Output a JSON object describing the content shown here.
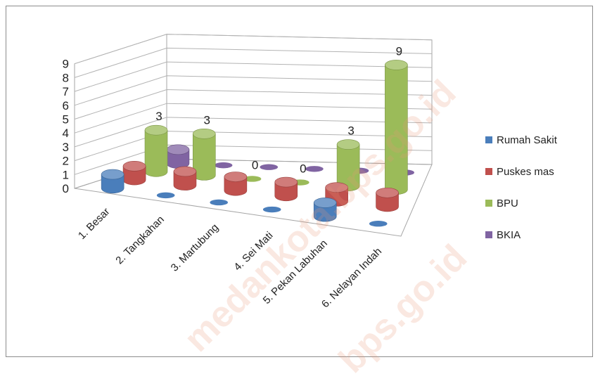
{
  "chart_data": {
    "type": "bar",
    "style": "3d-cylinder",
    "categories": [
      "1.    Besar",
      "2.    Tangkahan",
      "3.    Martubung",
      "4.    Sei Mati",
      "5.    Pekan Labuhan",
      "6.    Nelayan Indah"
    ],
    "series": [
      {
        "name": "Rumah Sakit",
        "color": "#4a7ebb",
        "values": [
          1,
          0,
          0,
          0,
          1,
          0
        ]
      },
      {
        "name": "Puskes mas",
        "color": "#c0504d",
        "values": [
          1,
          1,
          1,
          1,
          1,
          1
        ]
      },
      {
        "name": "BPU",
        "color": "#9bbb59",
        "values": [
          3,
          3,
          0,
          0,
          3,
          9
        ]
      },
      {
        "name": "BKIA",
        "color": "#8064a2",
        "values": [
          1,
          0,
          0,
          0,
          0,
          0
        ]
      }
    ],
    "data_labels": [
      {
        "series": "BPU",
        "category_index": 0,
        "text": "3"
      },
      {
        "series": "BPU",
        "category_index": 1,
        "text": "3"
      },
      {
        "series": "BPU",
        "category_index": 2,
        "text": "0"
      },
      {
        "series": "BPU",
        "category_index": 3,
        "text": "0"
      },
      {
        "series": "BPU",
        "category_index": 4,
        "text": "3"
      },
      {
        "series": "BPU",
        "category_index": 5,
        "text": "9"
      }
    ],
    "yticks": [
      "0",
      "1",
      "2",
      "3",
      "4",
      "5",
      "6",
      "7",
      "8",
      "9"
    ],
    "ylim": [
      0,
      9
    ],
    "grid": true,
    "legend_position": "right"
  },
  "watermark_text": [
    "medankota.bps.go.id",
    "bps.go.id"
  ]
}
